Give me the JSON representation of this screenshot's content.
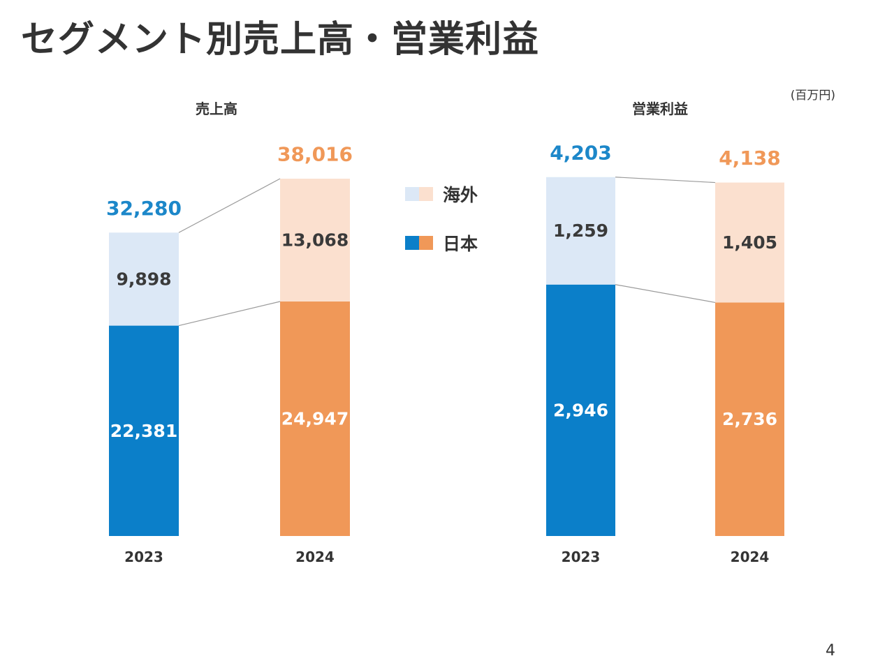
{
  "page": {
    "title": "セグメント別売上高・営業利益",
    "unit": "(百万円)",
    "page_number": "4"
  },
  "legend": {
    "overseas": "海外",
    "japan": "日本"
  },
  "colors": {
    "japan_2023": "#0B7FC9",
    "overseas_2023": "#DCE8F6",
    "japan_2024": "#F09858",
    "overseas_2024": "#FBE0CF",
    "total_2023_text": "#1C87C9",
    "total_2024_text": "#F09858",
    "label_dark": "#3A3A3A",
    "connector": "#9A9A9A"
  },
  "chart_data": [
    {
      "type": "bar",
      "stacked": true,
      "title": "売上高",
      "categories": [
        "2023",
        "2024"
      ],
      "series": [
        {
          "name": "日本",
          "values": [
            22381,
            24947
          ],
          "labels": [
            "22,381",
            "24,947"
          ]
        },
        {
          "name": "海外",
          "values": [
            9898,
            13068
          ],
          "labels": [
            "9,898",
            "13,068"
          ]
        }
      ],
      "totals": [
        32280,
        38016
      ],
      "total_labels": [
        "32,280",
        "38,016"
      ],
      "ylim": [
        0,
        38016
      ]
    },
    {
      "type": "bar",
      "stacked": true,
      "title": "営業利益",
      "categories": [
        "2023",
        "2024"
      ],
      "series": [
        {
          "name": "日本",
          "values": [
            2946,
            2736
          ],
          "labels": [
            "2,946",
            "2,736"
          ]
        },
        {
          "name": "海外",
          "values": [
            1259,
            1405
          ],
          "labels": [
            "1,259",
            "1,405"
          ]
        }
      ],
      "totals": [
        4203,
        4138
      ],
      "total_labels": [
        "4,203",
        "4,138"
      ],
      "ylim": [
        0,
        4203
      ]
    }
  ]
}
